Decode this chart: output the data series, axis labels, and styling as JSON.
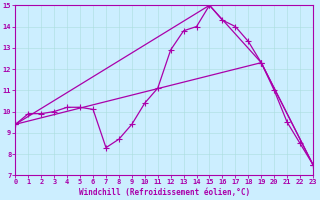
{
  "xlabel": "Windchill (Refroidissement éolien,°C)",
  "xlim": [
    0,
    23
  ],
  "ylim": [
    7,
    15
  ],
  "xticks": [
    0,
    1,
    2,
    3,
    4,
    5,
    6,
    7,
    8,
    9,
    10,
    11,
    12,
    13,
    14,
    15,
    16,
    17,
    18,
    19,
    20,
    21,
    22,
    23
  ],
  "yticks": [
    7,
    8,
    9,
    10,
    11,
    12,
    13,
    14,
    15
  ],
  "line_color": "#aa00aa",
  "bg_color": "#cceeff",
  "grid_color": "#aadddd",
  "line1_x": [
    0,
    1,
    2,
    3,
    4,
    5,
    6,
    7,
    8,
    9,
    10,
    11,
    12,
    13,
    14,
    15,
    16,
    17,
    18,
    19,
    20,
    21,
    22,
    23
  ],
  "line1_y": [
    9.4,
    9.9,
    9.9,
    10.0,
    10.2,
    10.2,
    10.1,
    8.3,
    8.7,
    9.4,
    10.4,
    11.1,
    12.9,
    13.8,
    14.0,
    15.0,
    14.3,
    14.0,
    13.3,
    12.3,
    11.0,
    9.5,
    8.5,
    7.5
  ],
  "line2_x": [
    0,
    15,
    19,
    23
  ],
  "line2_y": [
    9.4,
    15.0,
    12.3,
    7.5
  ],
  "line3_x": [
    0,
    19,
    23
  ],
  "line3_y": [
    9.4,
    12.3,
    7.5
  ],
  "marker": "+",
  "markersize": 4,
  "linewidth": 0.9,
  "tick_labelsize": 5,
  "xlabel_fontsize": 5.5
}
